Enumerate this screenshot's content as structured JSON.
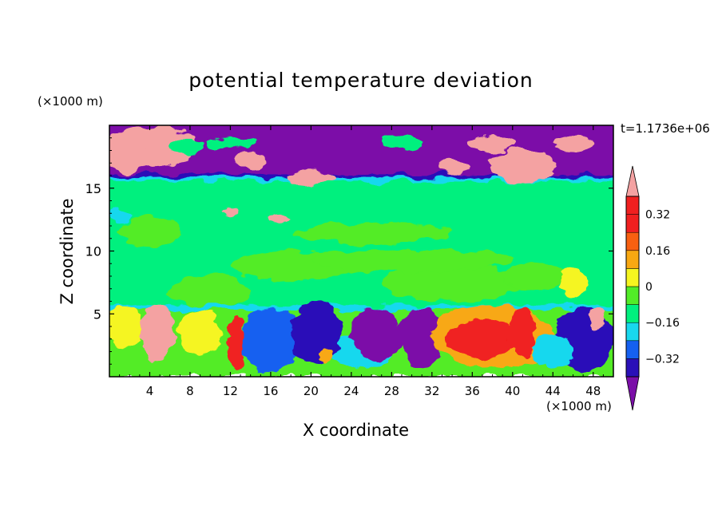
{
  "chart_data": {
    "type": "heatmap",
    "title": "potential temperature deviation",
    "xlabel": "X coordinate",
    "ylabel": "Z coordinate",
    "x_unit": "(×1000 m)",
    "y_unit": "(×1000 m)",
    "time_label": "t=1.1736e+06",
    "xlim": [
      0,
      50
    ],
    "ylim": [
      0,
      20
    ],
    "x_ticks": [
      4,
      8,
      12,
      16,
      20,
      24,
      28,
      32,
      36,
      40,
      44,
      48
    ],
    "y_ticks": [
      5,
      10,
      15
    ],
    "colorbar": {
      "levels": [
        -0.4,
        -0.32,
        -0.24,
        -0.16,
        -0.08,
        0,
        0.08,
        0.16,
        0.24,
        0.32,
        0.4
      ],
      "tick_labels": [
        "0.32",
        "0.16",
        "0",
        "−0.16",
        "−0.32"
      ],
      "tick_values": [
        0.32,
        0.16,
        0,
        -0.16,
        -0.32
      ],
      "colors": [
        "#7b0fa8",
        "#2a10b8",
        "#1560f0",
        "#18d8ee",
        "#00f07e",
        "#52ec28",
        "#f5f520",
        "#f8a812",
        "#f86010",
        "#f02020",
        "#f4a2a2"
      ]
    },
    "field_summary": {
      "stratosphere_z_above": 16,
      "stratosphere_value": "< -0.4 with patches > 0.4",
      "mid_layer_z_range": [
        5.5,
        15.5
      ],
      "mid_layer_value_range": [
        -0.08,
        0.08
      ],
      "boundary_layer_z_below": 5.5,
      "boundary_layer_value_range": [
        -0.4,
        0.4
      ]
    }
  }
}
